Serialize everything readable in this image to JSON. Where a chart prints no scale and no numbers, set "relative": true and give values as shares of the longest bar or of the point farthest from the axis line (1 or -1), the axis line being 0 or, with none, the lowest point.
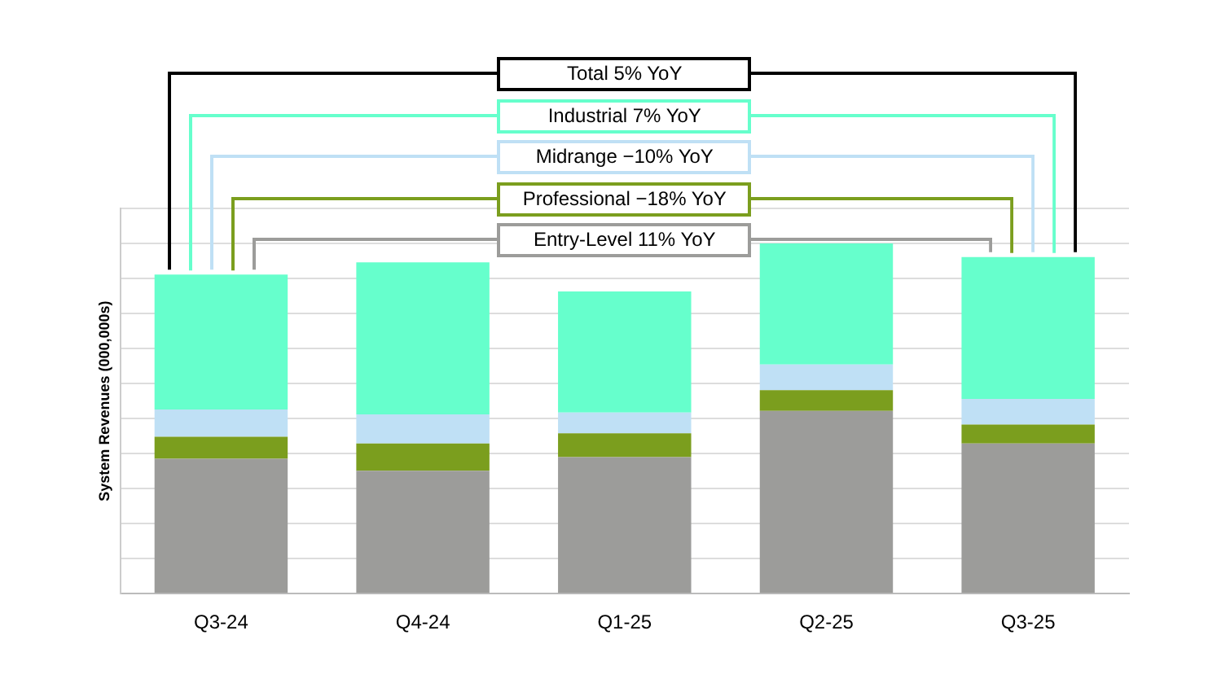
{
  "chart_data": {
    "type": "bar",
    "stacked": true,
    "relative": true,
    "grid": "y",
    "ylabel": "System Revenues (000,000s)",
    "categories": [
      "Q3-24",
      "Q4-24",
      "Q1-25",
      "Q2-25",
      "Q3-25"
    ],
    "series": [
      {
        "color": "#9c9c9a",
        "values": [
          0.385,
          0.351,
          0.39,
          0.522,
          0.429
        ]
      },
      {
        "color": "#7b9e1e",
        "values": [
          0.063,
          0.078,
          0.068,
          0.059,
          0.054
        ]
      },
      {
        "color": "#bfe0f5",
        "values": [
          0.078,
          0.083,
          0.059,
          0.073,
          0.073
        ]
      },
      {
        "color": "#66ffcc",
        "values": [
          0.385,
          0.434,
          0.346,
          0.346,
          0.405
        ]
      }
    ],
    "annotations": [
      "Total 5% YoY",
      "Industrial 7% YoY",
      "Midrange −10% YoY",
      "Professional −18% YoY",
      "Entry-Level 11% YoY"
    ]
  }
}
